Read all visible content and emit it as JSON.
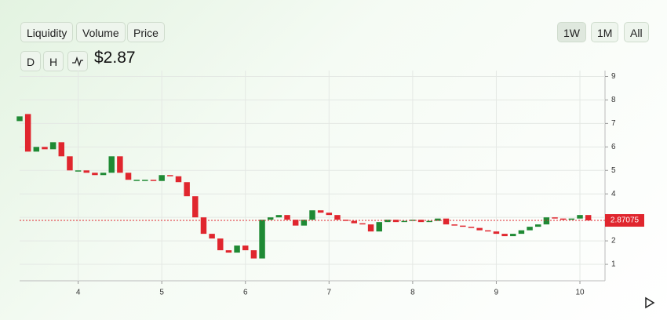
{
  "header": {
    "tabs": [
      "Liquidity",
      "Volume",
      "Price"
    ],
    "ranges": [
      "1W",
      "1M",
      "All"
    ],
    "intervals": [
      "D",
      "H"
    ],
    "price": "$2.87"
  },
  "chart_data": {
    "type": "candlestick",
    "x": [
      3.3,
      3.4,
      3.5,
      3.6,
      3.7,
      3.8,
      3.9,
      4.0,
      4.1,
      4.2,
      4.3,
      4.4,
      4.5,
      4.6,
      4.7,
      4.8,
      4.9,
      5.0,
      5.1,
      5.2,
      5.3,
      5.4,
      5.5,
      5.6,
      5.7,
      5.8,
      5.9,
      6.0,
      6.1,
      6.2,
      6.3,
      6.4,
      6.5,
      6.6,
      6.7,
      6.8,
      6.9,
      7.0,
      7.1,
      7.2,
      7.3,
      7.4,
      7.5,
      7.6,
      7.7,
      7.8,
      7.9,
      8.0,
      8.1,
      8.2,
      8.3,
      8.4,
      8.5,
      8.6,
      8.7,
      8.8,
      8.9,
      9.0,
      9.1,
      9.2,
      9.3,
      9.4,
      9.5,
      9.6,
      9.7,
      9.8,
      9.9,
      10.0,
      10.1
    ],
    "open": [
      7.1,
      7.4,
      5.8,
      6.0,
      5.9,
      6.2,
      5.6,
      5.0,
      5.0,
      4.9,
      4.8,
      4.9,
      5.6,
      4.9,
      4.6,
      4.6,
      4.6,
      4.55,
      4.8,
      4.75,
      4.5,
      3.9,
      3.0,
      2.3,
      2.1,
      1.6,
      1.5,
      1.8,
      1.6,
      1.25,
      2.9,
      3.0,
      3.1,
      2.9,
      2.65,
      2.9,
      3.3,
      3.2,
      3.1,
      2.9,
      2.85,
      2.75,
      2.7,
      2.4,
      2.8,
      2.9,
      2.8,
      2.85,
      2.9,
      2.8,
      2.85,
      2.95,
      2.7,
      2.65,
      2.6,
      2.55,
      2.45,
      2.4,
      2.3,
      2.2,
      2.3,
      2.45,
      2.6,
      2.7,
      3.0,
      2.95,
      2.9,
      2.95,
      3.1
    ],
    "close": [
      7.3,
      5.8,
      6.0,
      5.9,
      6.2,
      5.6,
      5.0,
      5.0,
      4.9,
      4.8,
      4.9,
      5.6,
      4.9,
      4.6,
      4.6,
      4.6,
      4.55,
      4.8,
      4.75,
      4.5,
      3.9,
      3.0,
      2.3,
      2.1,
      1.6,
      1.5,
      1.8,
      1.6,
      1.25,
      2.9,
      3.0,
      3.1,
      2.9,
      2.65,
      2.9,
      3.3,
      3.2,
      3.1,
      2.9,
      2.85,
      2.75,
      2.7,
      2.4,
      2.8,
      2.9,
      2.8,
      2.85,
      2.9,
      2.8,
      2.85,
      2.95,
      2.7,
      2.65,
      2.6,
      2.55,
      2.45,
      2.4,
      2.3,
      2.2,
      2.3,
      2.45,
      2.6,
      2.7,
      3.0,
      2.95,
      2.9,
      2.95,
      3.1,
      2.87
    ],
    "up_color": "#1f8a34",
    "down_color": "#e0262e",
    "current_price": 2.87075,
    "xlim": [
      3.3,
      10.3
    ],
    "xticks": [
      4,
      5,
      6,
      7,
      8,
      9,
      10
    ],
    "ylim": [
      0.3,
      9.25
    ],
    "yticks": [
      1,
      2,
      3,
      4,
      5,
      6,
      7,
      8,
      9
    ],
    "grid": true
  }
}
